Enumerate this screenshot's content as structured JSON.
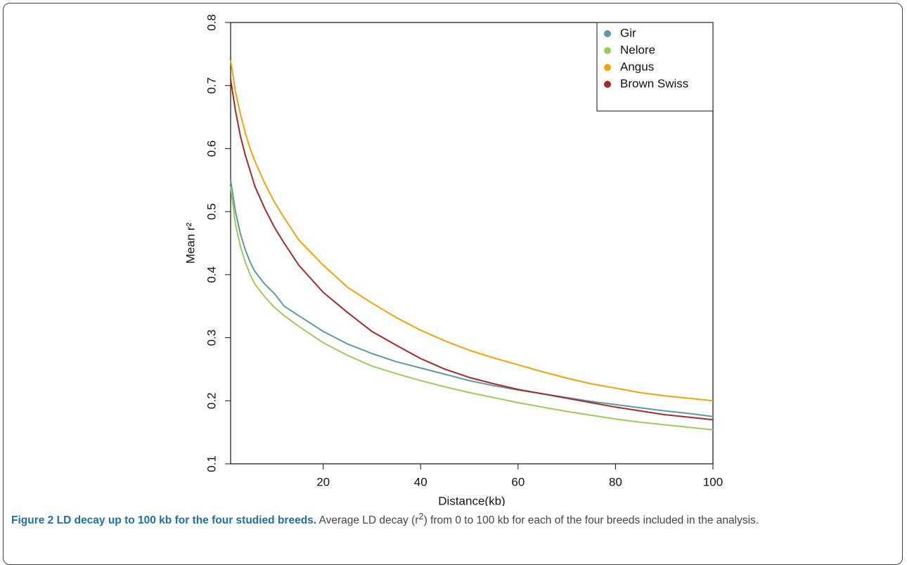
{
  "chart_data": {
    "type": "line",
    "xlabel": "Distance(kb)",
    "ylabel": "Mean r²",
    "x": [
      1,
      2,
      3,
      4,
      5,
      6,
      8,
      10,
      12,
      15,
      20,
      25,
      30,
      35,
      40,
      45,
      50,
      55,
      60,
      65,
      70,
      75,
      80,
      85,
      90,
      95,
      100
    ],
    "series": [
      {
        "name": "Gir",
        "color": "#5b9aa0",
        "values": [
          0.55,
          0.5,
          0.465,
          0.44,
          0.42,
          0.405,
          0.385,
          0.37,
          0.35,
          0.335,
          0.31,
          0.29,
          0.275,
          0.262,
          0.252,
          0.242,
          0.232,
          0.224,
          0.217,
          0.211,
          0.205,
          0.199,
          0.194,
          0.189,
          0.184,
          0.18,
          0.175
        ]
      },
      {
        "name": "Nelore",
        "color": "#9dcb5b",
        "values": [
          0.54,
          0.48,
          0.445,
          0.42,
          0.4,
          0.385,
          0.365,
          0.348,
          0.335,
          0.318,
          0.292,
          0.272,
          0.255,
          0.243,
          0.232,
          0.222,
          0.213,
          0.205,
          0.197,
          0.19,
          0.183,
          0.177,
          0.171,
          0.166,
          0.162,
          0.158,
          0.154
        ]
      },
      {
        "name": "Angus",
        "color": "#f0a30a",
        "values": [
          0.74,
          0.69,
          0.655,
          0.625,
          0.6,
          0.58,
          0.545,
          0.515,
          0.49,
          0.455,
          0.415,
          0.38,
          0.355,
          0.332,
          0.312,
          0.295,
          0.28,
          0.268,
          0.257,
          0.246,
          0.236,
          0.227,
          0.22,
          0.213,
          0.208,
          0.204,
          0.2
        ]
      },
      {
        "name": "Brown Swiss",
        "color": "#a52a2a",
        "values": [
          0.71,
          0.66,
          0.62,
          0.59,
          0.565,
          0.54,
          0.505,
          0.475,
          0.45,
          0.415,
          0.372,
          0.34,
          0.31,
          0.288,
          0.267,
          0.25,
          0.237,
          0.227,
          0.218,
          0.211,
          0.204,
          0.197,
          0.19,
          0.184,
          0.178,
          0.174,
          0.17
        ]
      }
    ],
    "xlim": [
      1,
      100
    ],
    "xticks": [
      20,
      40,
      60,
      80,
      100
    ],
    "ylim": [
      0.1,
      0.8
    ],
    "yticks": [
      0.1,
      0.2,
      0.3,
      0.4,
      0.5,
      0.6,
      0.7,
      0.8
    ],
    "legend": "top-right",
    "caption": {
      "label": "Figure 2",
      "title": "LD decay up to 100 kb for the four studied breeds.",
      "text_before": "Average LD decay (r",
      "superscript": "2",
      "text_after": ") from 0 to 100 kb for each of the four breeds included in the analysis."
    }
  }
}
